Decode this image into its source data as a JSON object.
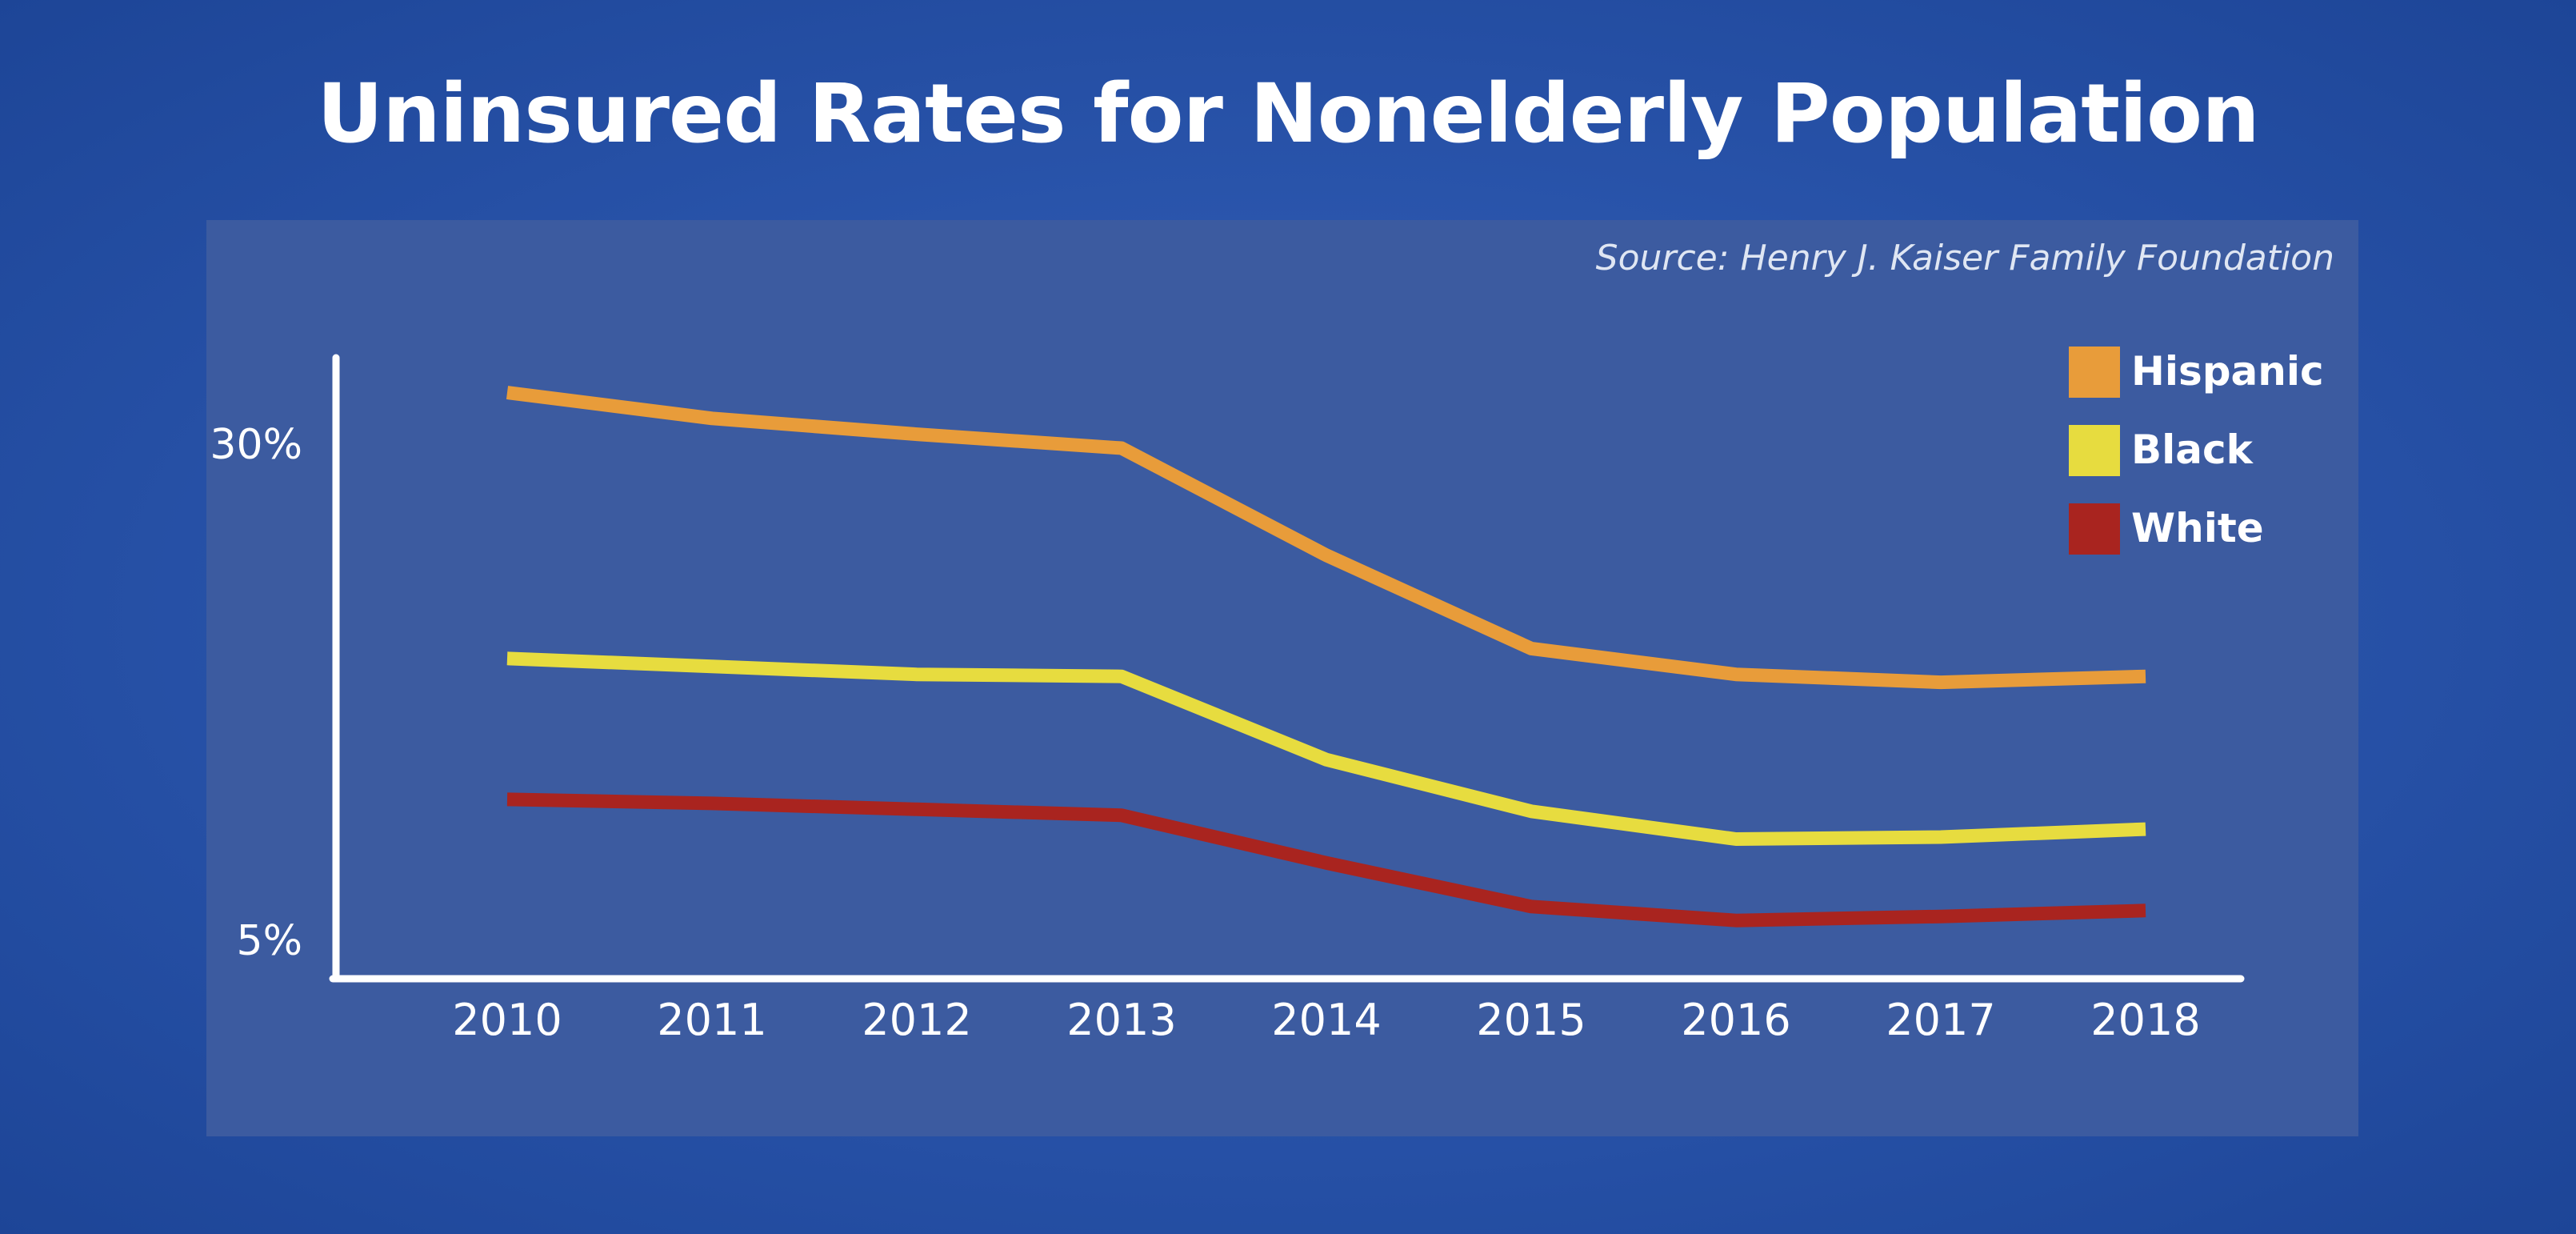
{
  "chart_data": {
    "type": "line",
    "title": "Uninsured Rates for Nonelderly Population",
    "source": "Source: Henry J. Kaiser Family Foundation",
    "xlabel": "",
    "ylabel": "",
    "x": [
      "2010",
      "2011",
      "2012",
      "2013",
      "2014",
      "2015",
      "2016",
      "2017",
      "2018"
    ],
    "yticks": [
      {
        "value": 30,
        "label": "30%"
      },
      {
        "value": 5,
        "label": "5%"
      }
    ],
    "ylim": [
      3,
      34
    ],
    "grid": false,
    "legend_position": "top-right",
    "series": [
      {
        "name": "Hispanic",
        "color": "#e89c3a",
        "values": [
          32.6,
          31.3,
          30.5,
          29.8,
          24.4,
          19.7,
          18.4,
          18.0,
          18.3
        ]
      },
      {
        "name": "Black",
        "color": "#e7dc3f",
        "values": [
          19.2,
          18.8,
          18.4,
          18.3,
          14.1,
          11.5,
          10.1,
          10.2,
          10.6
        ]
      },
      {
        "name": "White",
        "color": "#a9241f",
        "values": [
          12.1,
          11.9,
          11.6,
          11.3,
          8.9,
          6.7,
          6.0,
          6.2,
          6.5
        ]
      }
    ]
  }
}
